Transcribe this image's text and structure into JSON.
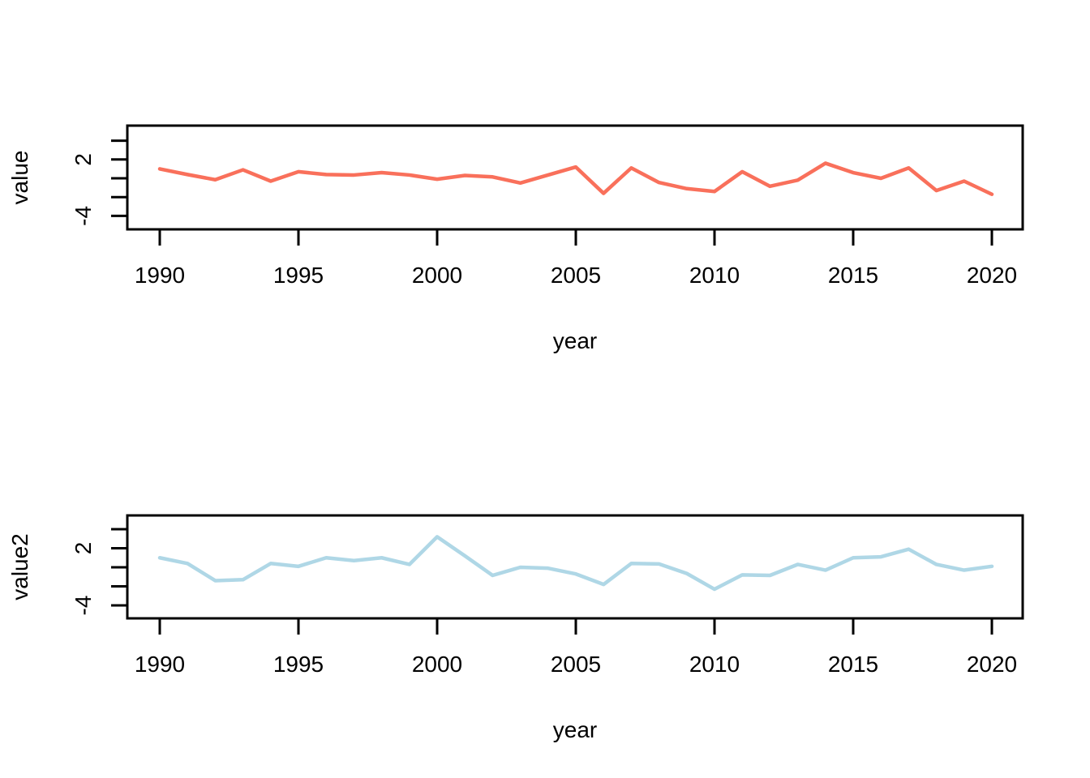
{
  "figure": {
    "background": "#ffffff",
    "axis_color": "#000000",
    "text_color": "#000000"
  },
  "chart_data": [
    {
      "type": "line",
      "title": "",
      "xlabel": "year",
      "ylabel": "value",
      "line_color": "#F9705B",
      "grid": false,
      "legend": "none",
      "xlim": [
        1988.5,
        2021.5
      ],
      "ylim": [
        -5.5,
        5.5
      ],
      "xticks": [
        1990,
        1995,
        2000,
        2005,
        2010,
        2015,
        2020
      ],
      "xtick_labels": [
        "1990",
        "1995",
        "2000",
        "2005",
        "2010",
        "2015",
        "2020"
      ],
      "yticks": [
        4,
        2,
        0,
        -2,
        -4
      ],
      "ytick_labels": [
        "",
        "2",
        "",
        "",
        "-4"
      ],
      "x": [
        1990,
        1991,
        1992,
        1993,
        1994,
        1995,
        1996,
        1997,
        1998,
        1999,
        2000,
        2001,
        2002,
        2003,
        2004,
        2005,
        2006,
        2007,
        2008,
        2009,
        2010,
        2011,
        2012,
        2013,
        2014,
        2015,
        2016,
        2017,
        2018,
        2019,
        2020
      ],
      "values": [
        1.0,
        0.4,
        -0.15,
        0.9,
        -0.3,
        0.7,
        0.4,
        0.35,
        0.6,
        0.35,
        -0.1,
        0.3,
        0.15,
        -0.5,
        0.35,
        1.2,
        -1.6,
        1.1,
        -0.45,
        -1.1,
        -1.4,
        0.7,
        -0.85,
        -0.2,
        1.6,
        0.6,
        0.0,
        1.1,
        -1.3,
        -0.3,
        -1.7
      ]
    },
    {
      "type": "line",
      "title": "",
      "xlabel": "year",
      "ylabel": "value2",
      "line_color": "#AFD7E6",
      "grid": false,
      "legend": "none",
      "xlim": [
        1988.5,
        2021.5
      ],
      "ylim": [
        -5.5,
        5.5
      ],
      "xticks": [
        1990,
        1995,
        2000,
        2005,
        2010,
        2015,
        2020
      ],
      "xtick_labels": [
        "1990",
        "1995",
        "2000",
        "2005",
        "2010",
        "2015",
        "2020"
      ],
      "yticks": [
        4,
        2,
        0,
        -2,
        -4
      ],
      "ytick_labels": [
        "",
        "2",
        "",
        "",
        "-4"
      ],
      "x": [
        1990,
        1991,
        1992,
        1993,
        1994,
        1995,
        1996,
        1997,
        1998,
        1999,
        2000,
        2001,
        2002,
        2003,
        2004,
        2005,
        2006,
        2007,
        2008,
        2009,
        2010,
        2011,
        2012,
        2013,
        2014,
        2015,
        2016,
        2017,
        2018,
        2019,
        2020
      ],
      "values": [
        1.0,
        0.4,
        -1.4,
        -1.3,
        0.4,
        0.1,
        1.0,
        0.7,
        1.0,
        0.3,
        3.2,
        1.2,
        -0.85,
        0.0,
        -0.1,
        -0.7,
        -1.8,
        0.4,
        0.35,
        -0.65,
        -2.3,
        -0.8,
        -0.85,
        0.3,
        -0.3,
        1.0,
        1.1,
        1.9,
        0.3,
        -0.3,
        0.1
      ]
    }
  ]
}
